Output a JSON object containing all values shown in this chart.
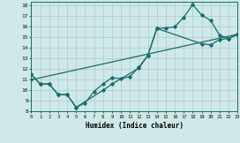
{
  "xlabel": "Humidex (Indice chaleur)",
  "xlim": [
    0,
    23
  ],
  "ylim": [
    8,
    18.4
  ],
  "yticks": [
    8,
    9,
    10,
    11,
    12,
    13,
    14,
    15,
    16,
    17,
    18
  ],
  "xticks": [
    0,
    1,
    2,
    3,
    4,
    5,
    6,
    7,
    8,
    9,
    10,
    11,
    12,
    13,
    14,
    15,
    16,
    17,
    18,
    19,
    20,
    21,
    22,
    23
  ],
  "bg_color": "#cfe8e8",
  "grid_color": "#b0d0d0",
  "line_color": "#1a6b6b",
  "line1_x": [
    0,
    1,
    2,
    3,
    4,
    5,
    6,
    7,
    8,
    9,
    10,
    11,
    12,
    13,
    14,
    15,
    16,
    17,
    18,
    19,
    20,
    21,
    22,
    23
  ],
  "line1_y": [
    11.5,
    10.6,
    10.6,
    9.6,
    9.6,
    8.4,
    8.8,
    9.9,
    10.6,
    11.2,
    11.1,
    11.3,
    12.2,
    13.3,
    15.85,
    15.9,
    16.0,
    16.9,
    18.1,
    17.1,
    16.6,
    15.2,
    14.9,
    15.3
  ],
  "line2_x": [
    0,
    1,
    2,
    3,
    4,
    5,
    8,
    9,
    12,
    13,
    14,
    19,
    20,
    21,
    22,
    23
  ],
  "line2_y": [
    11.5,
    10.6,
    10.6,
    9.6,
    9.6,
    8.4,
    10.0,
    10.6,
    12.1,
    13.3,
    15.85,
    14.4,
    14.3,
    14.8,
    14.9,
    15.3
  ],
  "line3_x": [
    0,
    23
  ],
  "line3_y": [
    11.0,
    15.3
  ]
}
